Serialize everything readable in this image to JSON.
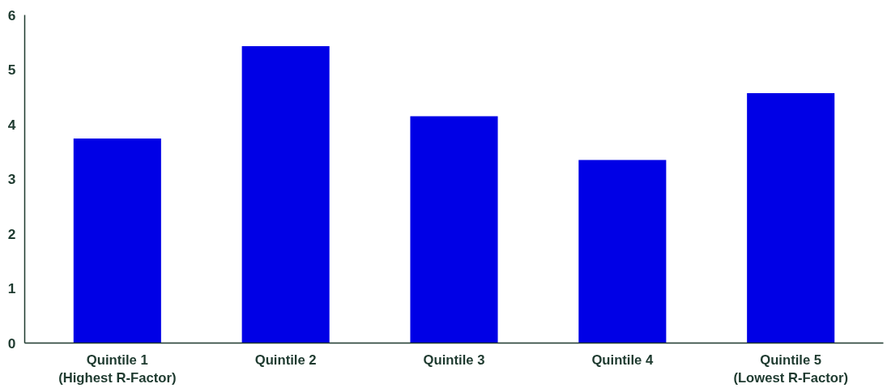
{
  "chart_data": {
    "type": "bar",
    "categories": [
      "Quintile 1\n(Highest R-Factor)",
      "Quintile 2",
      "Quintile 3",
      "Quintile 4",
      "Quintile 5\n(Lowest R-Factor)"
    ],
    "values": [
      3.74,
      5.43,
      4.15,
      3.35,
      4.57
    ],
    "color": "#0000e6",
    "ylim": [
      0,
      6
    ],
    "yticks": [
      0,
      1,
      2,
      3,
      4,
      5,
      6
    ],
    "grid": false
  }
}
